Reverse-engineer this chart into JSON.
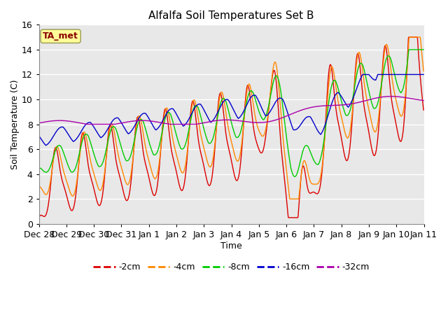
{
  "title": "Alfalfa Soil Temperatures Set B",
  "xlabel": "Time",
  "ylabel": "Soil Temperature (C)",
  "ylim": [
    0,
    16
  ],
  "yticks": [
    0,
    2,
    4,
    6,
    8,
    10,
    12,
    14,
    16
  ],
  "colors": {
    "-2cm": "#dd0000",
    "-4cm": "#ff8800",
    "-8cm": "#00cc00",
    "-16cm": "#0000cc",
    "-32cm": "#aa00aa"
  },
  "plot_bg_color": "#e8e8e8",
  "fig_bg_color": "#ffffff",
  "annotation_text": "TA_met",
  "annotation_bg": "#ffff99",
  "annotation_border": "#999955",
  "title_fontsize": 11,
  "label_fontsize": 9,
  "tick_fontsize": 9,
  "legend_fontsize": 9
}
